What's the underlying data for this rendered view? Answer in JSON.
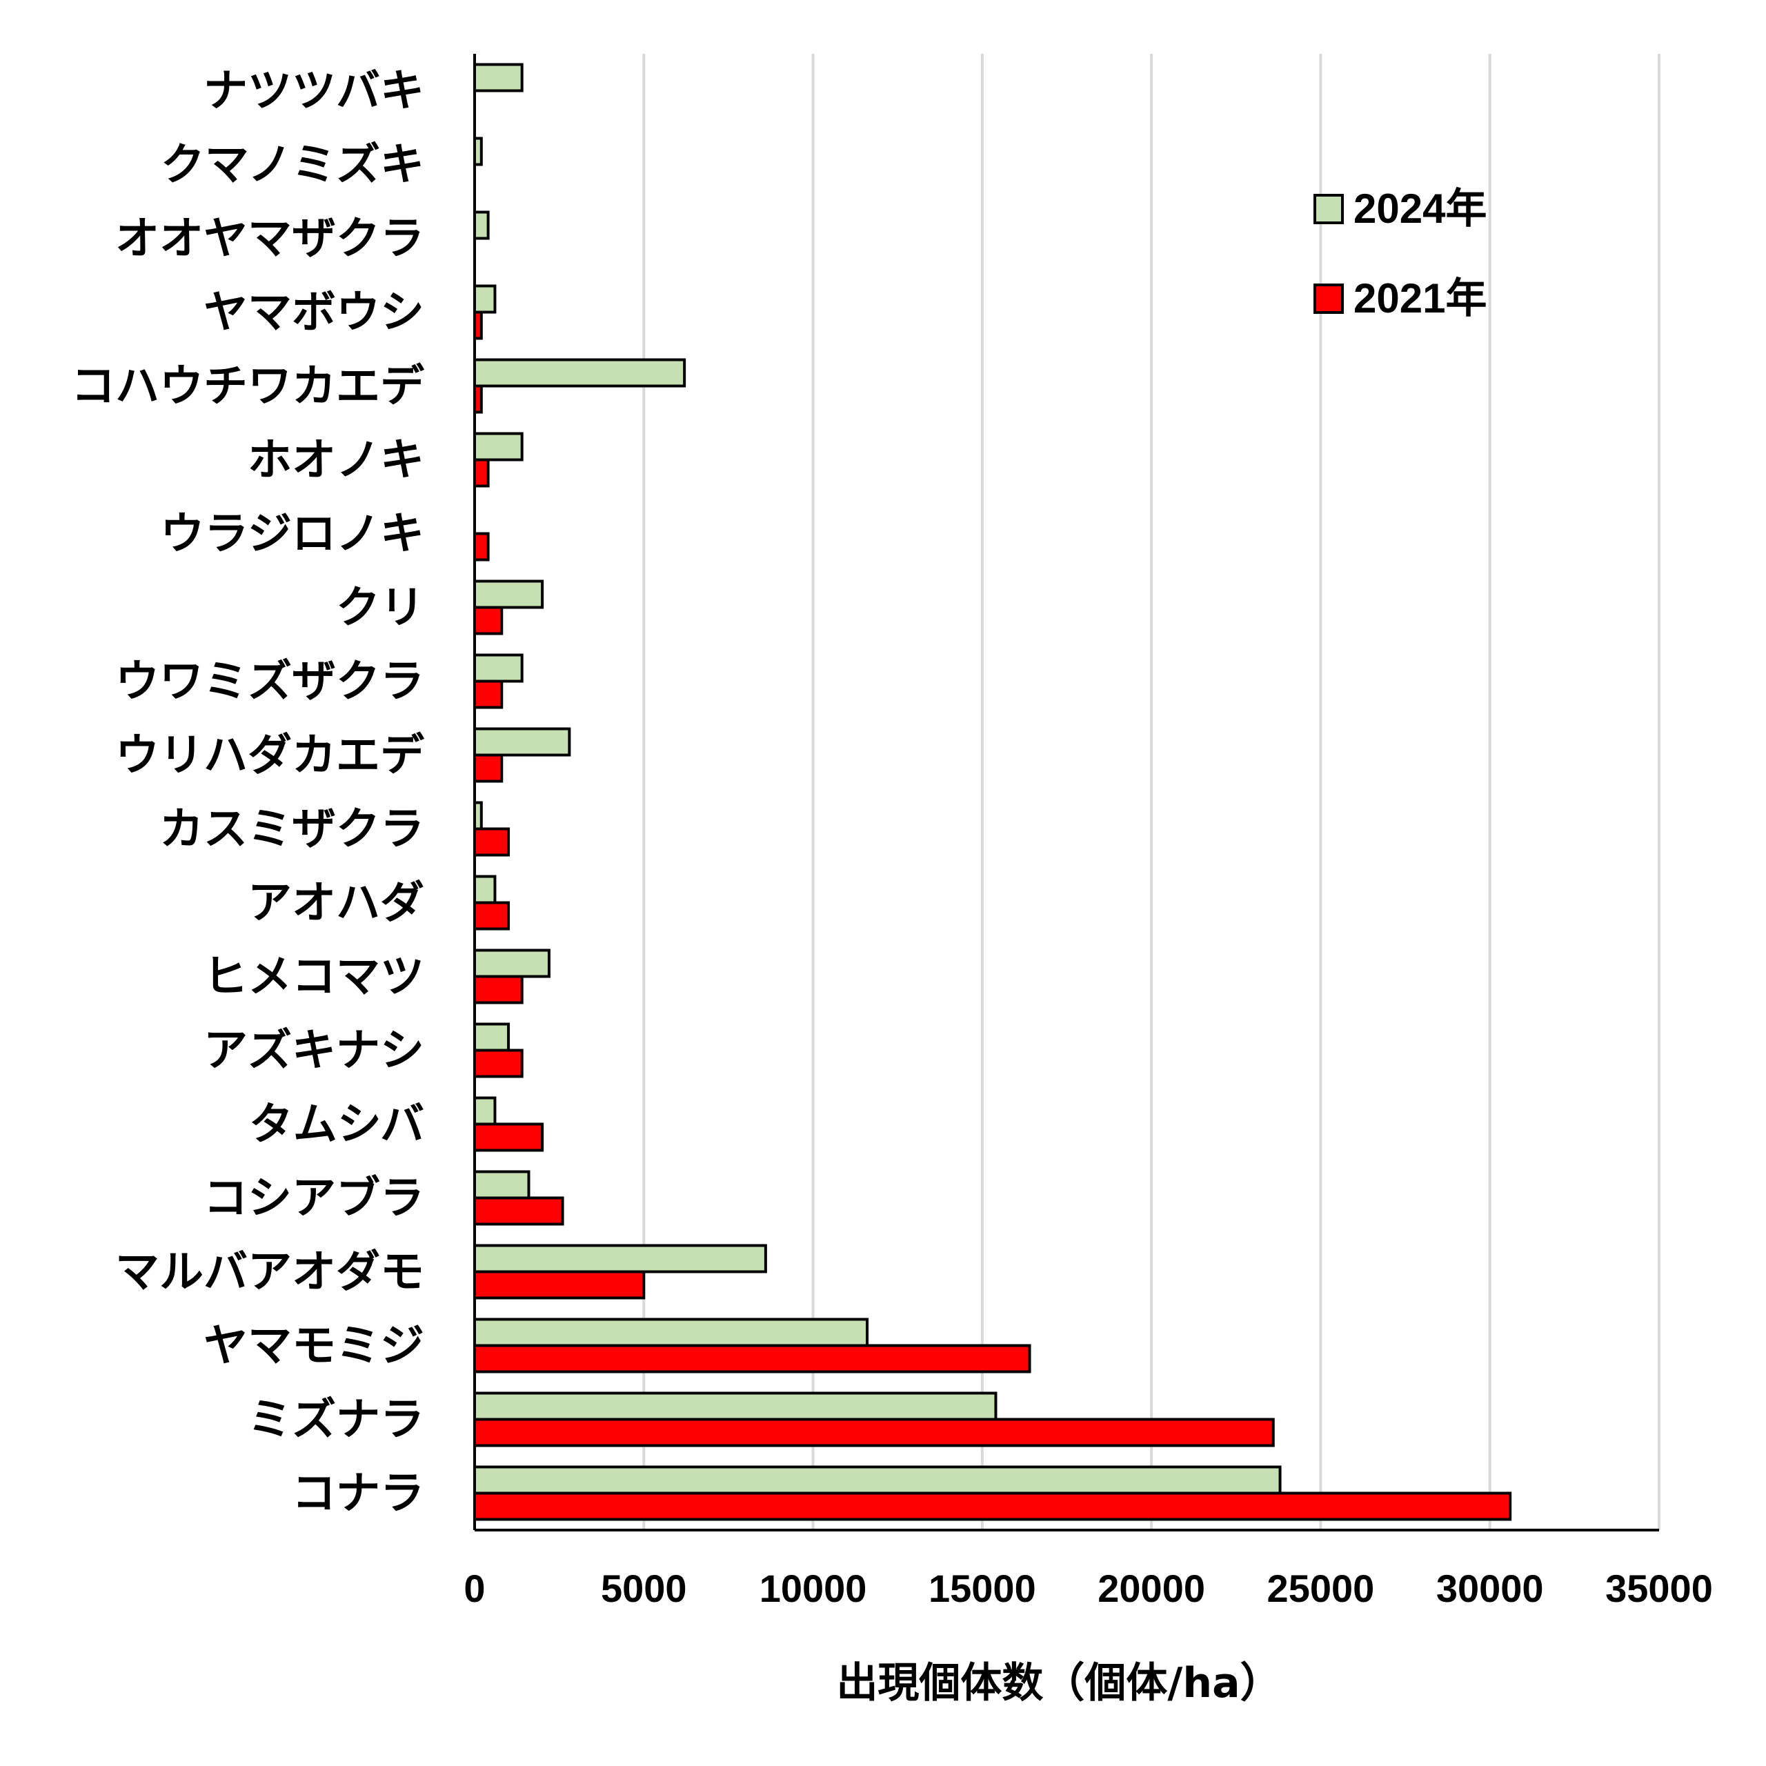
{
  "chart_data": {
    "type": "bar",
    "orientation": "horizontal",
    "categories": [
      "ナツツバキ",
      "クマノミズキ",
      "オオヤマザクラ",
      "ヤマボウシ",
      "コハウチワカエデ",
      "ホオノキ",
      "ウラジロノキ",
      "クリ",
      "ウワミズザクラ",
      "ウリハダカエデ",
      "カスミザクラ",
      "アオハダ",
      "ヒメコマツ",
      "アズキナシ",
      "タムシバ",
      "コシアブラ",
      "マルバアオダモ",
      "ヤマモミジ",
      "ミズナラ",
      "コナラ"
    ],
    "series": [
      {
        "name": "2024年",
        "color": "#c6e0b4",
        "values": [
          1400,
          200,
          400,
          600,
          6200,
          1400,
          0,
          2000,
          1400,
          2800,
          200,
          600,
          2200,
          1000,
          600,
          1600,
          8600,
          11600,
          15400,
          23800
        ]
      },
      {
        "name": "2021年",
        "color": "#ff0000",
        "values": [
          0,
          0,
          0,
          200,
          200,
          400,
          400,
          800,
          800,
          800,
          1000,
          1000,
          1400,
          1400,
          2000,
          2600,
          5000,
          16400,
          23600,
          30600
        ]
      }
    ],
    "xlim": [
      0,
      35000
    ],
    "xticks": [
      0,
      5000,
      10000,
      15000,
      20000,
      25000,
      30000,
      35000
    ],
    "xlabel": "出現個体数（個体/ha）",
    "ylabel": "",
    "grid": true,
    "legend_position": "top-right"
  }
}
